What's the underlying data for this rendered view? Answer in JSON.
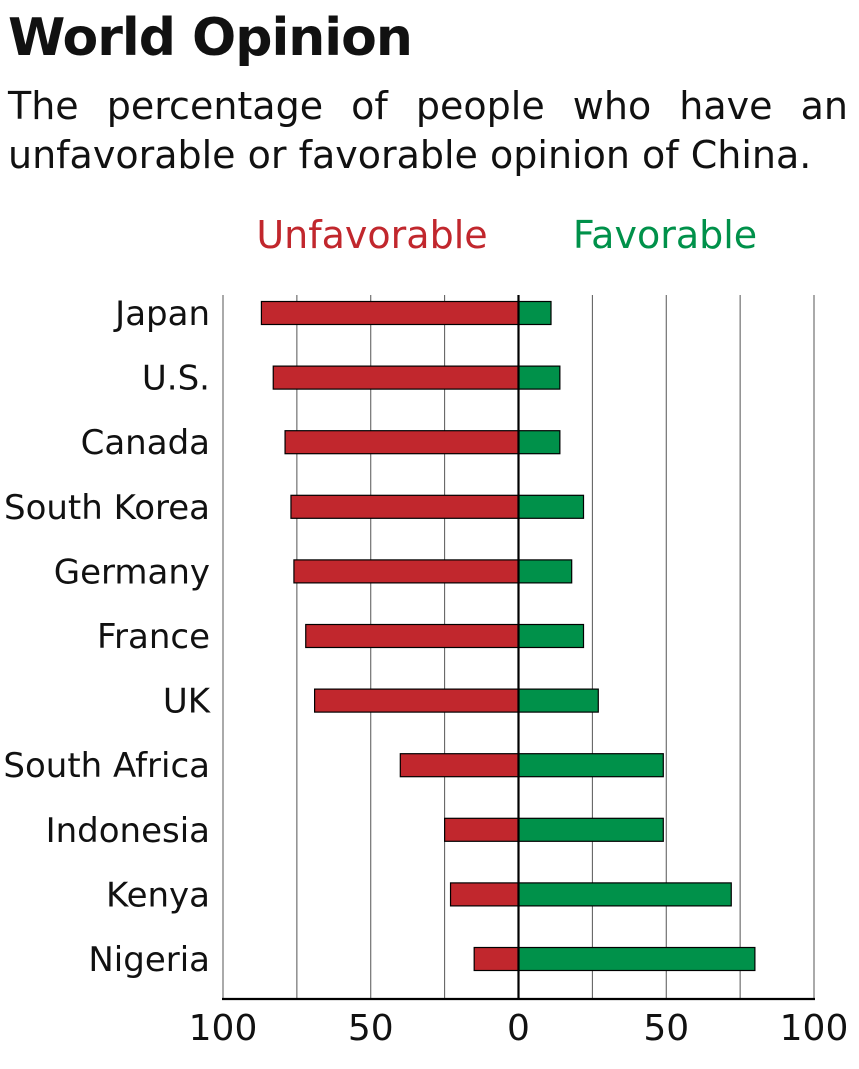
{
  "title": "World Opinion",
  "subtitle": "The percentage of people who have an unfavorable or favorable opinion of China.",
  "colors": {
    "unfavorable": "#c1272d",
    "favorable": "#00914a",
    "axis": "#000000",
    "grid": "#555555"
  },
  "chart_data": {
    "type": "bar",
    "orientation": "horizontal-diverging",
    "title": "World Opinion",
    "legend": [
      "Unfavorable",
      "Favorable"
    ],
    "legend_position": "top",
    "categories": [
      "Japan",
      "U.S.",
      "Canada",
      "South Korea",
      "Germany",
      "France",
      "UK",
      "South Africa",
      "Indonesia",
      "Kenya",
      "Nigeria"
    ],
    "series": [
      {
        "name": "Unfavorable",
        "direction": "left",
        "values": [
          87,
          83,
          79,
          77,
          76,
          72,
          69,
          40,
          25,
          23,
          15
        ]
      },
      {
        "name": "Favorable",
        "direction": "right",
        "values": [
          11,
          14,
          14,
          22,
          18,
          22,
          27,
          49,
          49,
          72,
          80
        ]
      }
    ],
    "xlim": [
      -100,
      100
    ],
    "tick_values": [
      -100,
      -50,
      0,
      50,
      100
    ],
    "tick_labels": [
      "100",
      "50",
      "0",
      "50",
      "100"
    ],
    "gridline_step": 25,
    "grid": true
  }
}
